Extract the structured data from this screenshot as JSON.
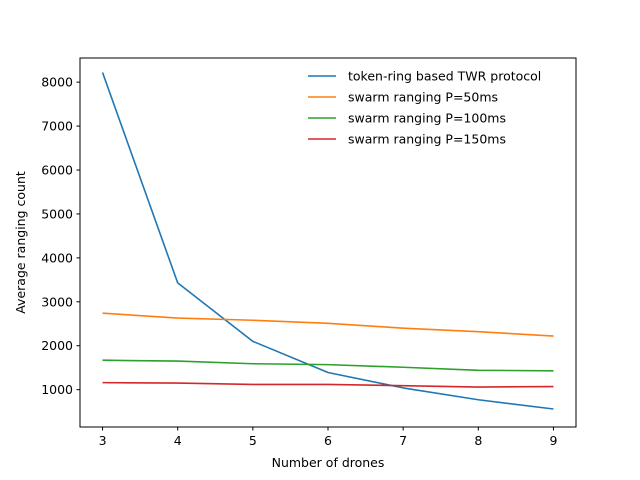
{
  "chart_data": {
    "type": "line",
    "xlabel": "Number of drones",
    "ylabel": "Average ranging count",
    "x": [
      3,
      4,
      5,
      6,
      7,
      8,
      9
    ],
    "xlim": [
      2.7,
      9.3
    ],
    "ylim": [
      150,
      8550
    ],
    "xticks": [
      3,
      4,
      5,
      6,
      7,
      8,
      9
    ],
    "yticks": [
      1000,
      2000,
      3000,
      4000,
      5000,
      6000,
      7000,
      8000
    ],
    "grid": false,
    "legend_position": "top-right",
    "series": [
      {
        "name": "token-ring based TWR protocol",
        "color": "#1f77b4",
        "values": [
          8220,
          3430,
          2100,
          1390,
          1040,
          770,
          560
        ]
      },
      {
        "name": "swarm ranging P=50ms",
        "color": "#ff7f0e",
        "values": [
          2740,
          2630,
          2580,
          2510,
          2400,
          2320,
          2220
        ]
      },
      {
        "name": "swarm ranging P=100ms",
        "color": "#2ca02c",
        "values": [
          1670,
          1650,
          1590,
          1570,
          1510,
          1440,
          1430
        ]
      },
      {
        "name": "swarm ranging P=150ms",
        "color": "#d62728",
        "values": [
          1160,
          1150,
          1120,
          1120,
          1090,
          1060,
          1070
        ]
      }
    ]
  }
}
